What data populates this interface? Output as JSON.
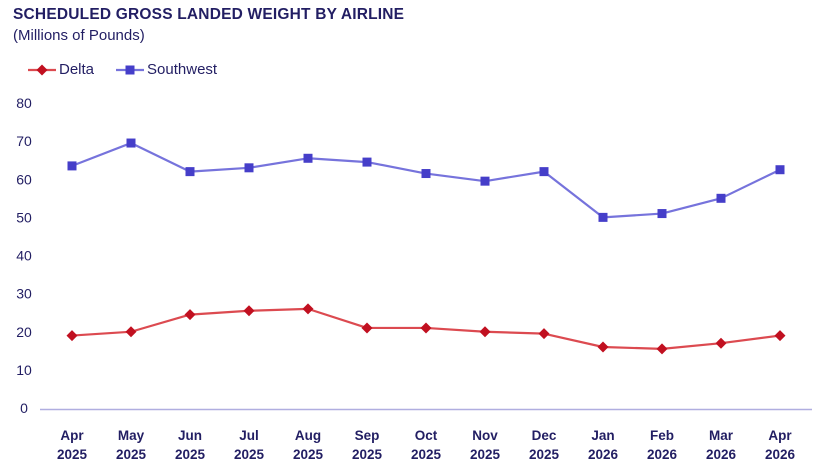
{
  "title": "SCHEDULED GROSS LANDED WEIGHT BY AIRLINE",
  "subtitle": "(Millions of Pounds)",
  "colors": {
    "text_navy": "#221E63",
    "axis_line": "#B0AEE0",
    "delta_marker": "#C11020",
    "delta_line": "#DC4A50",
    "southwest_marker": "#453EC9",
    "southwest_line": "#7673DC"
  },
  "chart_data": {
    "type": "line",
    "title": "SCHEDULED GROSS LANDED WEIGHT BY AIRLINE",
    "subtitle": "(Millions of Pounds)",
    "categories": [
      "Apr 2025",
      "May 2025",
      "Jun 2025",
      "Jul 2025",
      "Aug 2025",
      "Sep 2025",
      "Oct 2025",
      "Nov 2025",
      "Dec 2025",
      "Jan 2026",
      "Feb 2026",
      "Mar 2026",
      "Apr 2026"
    ],
    "series": [
      {
        "name": "Delta",
        "marker": "diamond",
        "marker_color": "#C11020",
        "line_color": "#DC4A50",
        "values": [
          19,
          20,
          24.5,
          25.5,
          26,
          21,
          21,
          20,
          19.5,
          16,
          15.5,
          17,
          19
        ]
      },
      {
        "name": "Southwest",
        "marker": "square",
        "marker_color": "#453EC9",
        "line_color": "#7673DC",
        "values": [
          63.5,
          69.5,
          62,
          63,
          65.5,
          64.5,
          61.5,
          59.5,
          62,
          50,
          51,
          55,
          62.5
        ]
      }
    ],
    "xlabel": "",
    "ylabel": "",
    "ylim": [
      0,
      80
    ],
    "yticks": [
      0,
      10,
      20,
      30,
      40,
      50,
      60,
      70,
      80
    ],
    "grid": false,
    "legend_position": "top-left"
  }
}
